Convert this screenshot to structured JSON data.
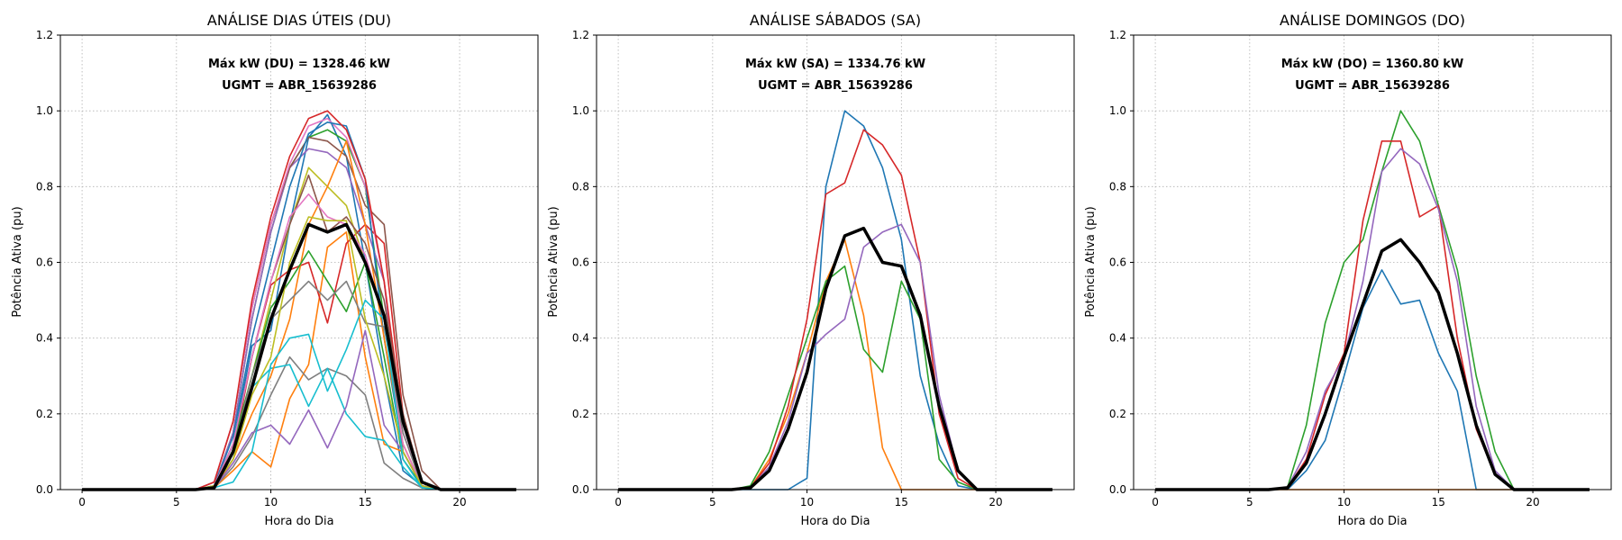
{
  "chart_data": [
    {
      "type": "line",
      "title": "ANÁLISE DIAS ÚTEIS (DU)",
      "xlabel": "Hora do Dia",
      "ylabel": "Potência Ativa (pu)",
      "annotations": [
        "Máx kW (DU) = 1328.46 kW",
        "UGMT = ABR_15639286"
      ],
      "xlim": [
        -1.15,
        24.15
      ],
      "ylim": [
        0,
        1.2
      ],
      "xticks": [
        "0",
        "5",
        "10",
        "15",
        "20"
      ],
      "yticks": [
        "0.0",
        "0.2",
        "0.4",
        "0.6",
        "0.8",
        "1.0",
        "1.2"
      ],
      "grid": true,
      "series": [
        {
          "color": "#1f77b4",
          "values": [
            0,
            0,
            0,
            0,
            0,
            0,
            0,
            0.01,
            0.12,
            0.38,
            0.42,
            0.7,
            0.93,
            0.99,
            0.88,
            0.6,
            0.3,
            0.05,
            0.01,
            0,
            0,
            0,
            0,
            0
          ]
        },
        {
          "color": "#ff7f0e",
          "values": [
            0,
            0,
            0,
            0,
            0,
            0,
            0,
            0.005,
            0.05,
            0.1,
            0.06,
            0.24,
            0.33,
            0.64,
            0.68,
            0.35,
            0.12,
            0.1,
            0.01,
            0,
            0,
            0,
            0,
            0
          ]
        },
        {
          "color": "#2ca02c",
          "values": [
            0,
            0,
            0,
            0,
            0,
            0,
            0,
            0.01,
            0.15,
            0.45,
            0.68,
            0.85,
            0.93,
            0.95,
            0.92,
            0.8,
            0.45,
            0.1,
            0.01,
            0,
            0,
            0,
            0,
            0
          ]
        },
        {
          "color": "#d62728",
          "values": [
            0,
            0,
            0,
            0,
            0,
            0,
            0,
            0.005,
            0.1,
            0.35,
            0.54,
            0.58,
            0.6,
            0.44,
            0.65,
            0.7,
            0.65,
            0.2,
            0.02,
            0,
            0,
            0,
            0,
            0
          ]
        },
        {
          "color": "#9467bd",
          "values": [
            0,
            0,
            0,
            0,
            0,
            0,
            0,
            0.01,
            0.15,
            0.45,
            0.68,
            0.85,
            0.9,
            0.89,
            0.85,
            0.7,
            0.55,
            0.1,
            0.01,
            0,
            0,
            0,
            0,
            0
          ]
        },
        {
          "color": "#8c564b",
          "values": [
            0,
            0,
            0,
            0,
            0,
            0,
            0,
            0.02,
            0.18,
            0.48,
            0.7,
            0.85,
            0.93,
            0.92,
            0.88,
            0.75,
            0.7,
            0.25,
            0.05,
            0,
            0,
            0,
            0,
            0
          ]
        },
        {
          "color": "#e377c2",
          "values": [
            0,
            0,
            0,
            0,
            0,
            0,
            0,
            0.02,
            0.18,
            0.48,
            0.7,
            0.86,
            0.96,
            0.98,
            0.93,
            0.8,
            0.55,
            0.15,
            0.02,
            0,
            0,
            0,
            0,
            0
          ]
        },
        {
          "color": "#7f7f7f",
          "values": [
            0,
            0,
            0,
            0,
            0,
            0,
            0,
            0.005,
            0.06,
            0.14,
            0.25,
            0.35,
            0.29,
            0.32,
            0.3,
            0.25,
            0.07,
            0.03,
            0.005,
            0,
            0,
            0,
            0,
            0
          ]
        },
        {
          "color": "#bcbd22",
          "values": [
            0,
            0,
            0,
            0,
            0,
            0,
            0,
            0.01,
            0.1,
            0.3,
            0.5,
            0.7,
            0.85,
            0.8,
            0.75,
            0.6,
            0.45,
            0.12,
            0.01,
            0,
            0,
            0,
            0,
            0
          ]
        },
        {
          "color": "#17becf",
          "values": [
            0,
            0,
            0,
            0,
            0,
            0,
            0,
            0.005,
            0.08,
            0.27,
            0.32,
            0.33,
            0.22,
            0.32,
            0.2,
            0.14,
            0.13,
            0.06,
            0.005,
            0,
            0,
            0,
            0,
            0
          ]
        },
        {
          "color": "#1f77b4",
          "values": [
            0,
            0,
            0,
            0,
            0,
            0,
            0,
            0.01,
            0.14,
            0.4,
            0.6,
            0.8,
            0.94,
            0.97,
            0.96,
            0.82,
            0.4,
            0.1,
            0.01,
            0,
            0,
            0,
            0,
            0
          ]
        },
        {
          "color": "#ff7f0e",
          "values": [
            0,
            0,
            0,
            0,
            0,
            0,
            0,
            0.005,
            0.08,
            0.2,
            0.3,
            0.45,
            0.7,
            0.8,
            0.92,
            0.7,
            0.4,
            0.12,
            0.01,
            0,
            0,
            0,
            0,
            0
          ]
        },
        {
          "color": "#2ca02c",
          "values": [
            0,
            0,
            0,
            0,
            0,
            0,
            0,
            0.01,
            0.12,
            0.3,
            0.48,
            0.55,
            0.63,
            0.55,
            0.47,
            0.6,
            0.35,
            0.08,
            0.01,
            0,
            0,
            0,
            0,
            0
          ]
        },
        {
          "color": "#d62728",
          "values": [
            0,
            0,
            0,
            0,
            0,
            0,
            0,
            0.02,
            0.18,
            0.5,
            0.72,
            0.88,
            0.98,
            1.0,
            0.95,
            0.82,
            0.55,
            0.18,
            0.02,
            0,
            0,
            0,
            0,
            0
          ]
        },
        {
          "color": "#9467bd",
          "values": [
            0,
            0,
            0,
            0,
            0,
            0,
            0,
            0.005,
            0.07,
            0.15,
            0.17,
            0.12,
            0.21,
            0.11,
            0.22,
            0.42,
            0.17,
            0.1,
            0.01,
            0,
            0,
            0,
            0,
            0
          ]
        },
        {
          "color": "#8c564b",
          "values": [
            0,
            0,
            0,
            0,
            0,
            0,
            0,
            0.01,
            0.12,
            0.35,
            0.55,
            0.7,
            0.83,
            0.68,
            0.72,
            0.65,
            0.5,
            0.2,
            0.02,
            0,
            0,
            0,
            0,
            0
          ]
        },
        {
          "color": "#e377c2",
          "values": [
            0,
            0,
            0,
            0,
            0,
            0,
            0,
            0.01,
            0.12,
            0.35,
            0.55,
            0.72,
            0.78,
            0.72,
            0.7,
            0.62,
            0.45,
            0.12,
            0.01,
            0,
            0,
            0,
            0,
            0
          ]
        },
        {
          "color": "#7f7f7f",
          "values": [
            0,
            0,
            0,
            0,
            0,
            0,
            0,
            0.01,
            0.1,
            0.3,
            0.45,
            0.5,
            0.55,
            0.5,
            0.55,
            0.44,
            0.43,
            0.15,
            0.01,
            0,
            0,
            0,
            0,
            0
          ]
        },
        {
          "color": "#bcbd22",
          "values": [
            0,
            0,
            0,
            0,
            0,
            0,
            0,
            0.01,
            0.08,
            0.25,
            0.35,
            0.6,
            0.72,
            0.71,
            0.71,
            0.45,
            0.3,
            0.1,
            0.01,
            0,
            0,
            0,
            0,
            0
          ]
        },
        {
          "color": "#17becf",
          "values": [
            0,
            0,
            0,
            0,
            0,
            0,
            0,
            0.005,
            0.02,
            0.1,
            0.33,
            0.4,
            0.41,
            0.26,
            0.37,
            0.5,
            0.45,
            0.08,
            0.005,
            0,
            0,
            0,
            0,
            0
          ]
        },
        {
          "color": "#000000",
          "bold": true,
          "values": [
            0,
            0,
            0,
            0,
            0,
            0,
            0,
            0.005,
            0.1,
            0.27,
            0.45,
            0.58,
            0.7,
            0.68,
            0.7,
            0.6,
            0.46,
            0.18,
            0.02,
            0,
            0,
            0,
            0,
            0
          ]
        }
      ]
    },
    {
      "type": "line",
      "title": "ANÁLISE SÁBADOS (SA)",
      "xlabel": "Hora do Dia",
      "ylabel": "Potência Ativa (pu)",
      "annotations": [
        "Máx kW (SA) = 1334.76 kW",
        "UGMT = ABR_15639286"
      ],
      "xlim": [
        -1.15,
        24.15
      ],
      "ylim": [
        0,
        1.2
      ],
      "xticks": [
        "0",
        "5",
        "10",
        "15",
        "20"
      ],
      "yticks": [
        "0.0",
        "0.2",
        "0.4",
        "0.6",
        "0.8",
        "1.0",
        "1.2"
      ],
      "grid": true,
      "series": [
        {
          "color": "#1f77b4",
          "values": [
            0,
            0,
            0,
            0,
            0,
            0,
            0,
            0,
            0,
            0,
            0.03,
            0.8,
            1.0,
            0.96,
            0.85,
            0.66,
            0.3,
            0.12,
            0.01,
            0,
            0,
            0,
            0,
            0
          ]
        },
        {
          "color": "#ff7f0e",
          "values": [
            0,
            0,
            0,
            0,
            0,
            0,
            0,
            0.005,
            0.08,
            0.2,
            0.36,
            0.55,
            0.66,
            0.46,
            0.11,
            0,
            0,
            0,
            0,
            0,
            0,
            0,
            0,
            0
          ]
        },
        {
          "color": "#2ca02c",
          "values": [
            0,
            0,
            0,
            0,
            0,
            0,
            0,
            0.01,
            0.1,
            0.25,
            0.4,
            0.55,
            0.59,
            0.37,
            0.31,
            0.55,
            0.45,
            0.08,
            0.02,
            0,
            0,
            0,
            0,
            0
          ]
        },
        {
          "color": "#d62728",
          "values": [
            0,
            0,
            0,
            0,
            0,
            0,
            0,
            0.005,
            0.07,
            0.22,
            0.45,
            0.78,
            0.81,
            0.95,
            0.91,
            0.83,
            0.6,
            0.2,
            0.03,
            0,
            0,
            0,
            0,
            0
          ]
        },
        {
          "color": "#9467bd",
          "values": [
            0,
            0,
            0,
            0,
            0,
            0,
            0,
            0.005,
            0.06,
            0.18,
            0.36,
            0.41,
            0.45,
            0.64,
            0.68,
            0.7,
            0.6,
            0.25,
            0.05,
            0,
            0,
            0,
            0,
            0
          ]
        },
        {
          "color": "#000000",
          "bold": true,
          "values": [
            0,
            0,
            0,
            0,
            0,
            0,
            0,
            0.005,
            0.05,
            0.16,
            0.31,
            0.53,
            0.67,
            0.69,
            0.6,
            0.59,
            0.46,
            0.22,
            0.05,
            0,
            0,
            0,
            0,
            0
          ]
        }
      ]
    },
    {
      "type": "line",
      "title": "ANÁLISE DOMINGOS (DO)",
      "xlabel": "Hora do Dia",
      "ylabel": "Potência Ativa (pu)",
      "annotations": [
        "Máx kW (DO) = 1360.80 kW",
        "UGMT = ABR_15639286"
      ],
      "xlim": [
        -1.15,
        24.15
      ],
      "ylim": [
        0,
        1.2
      ],
      "xticks": [
        "0",
        "5",
        "10",
        "15",
        "20"
      ],
      "yticks": [
        "0.0",
        "0.2",
        "0.4",
        "0.6",
        "0.8",
        "1.0",
        "1.2"
      ],
      "grid": true,
      "series": [
        {
          "color": "#1f77b4",
          "values": [
            0,
            0,
            0,
            0,
            0,
            0,
            0,
            0,
            0.05,
            0.13,
            0.3,
            0.48,
            0.58,
            0.49,
            0.5,
            0.36,
            0.26,
            0,
            0,
            0,
            0,
            0,
            0,
            0
          ]
        },
        {
          "color": "#ff7f0e",
          "values": [
            0,
            0,
            0,
            0,
            0,
            0,
            0,
            0,
            0,
            0,
            0,
            0,
            0,
            0,
            0,
            0,
            0,
            0,
            0,
            0,
            0,
            0,
            0,
            0
          ]
        },
        {
          "color": "#2ca02c",
          "values": [
            0,
            0,
            0,
            0,
            0,
            0,
            0,
            0.005,
            0.17,
            0.44,
            0.6,
            0.66,
            0.84,
            1.0,
            0.92,
            0.75,
            0.58,
            0.3,
            0.1,
            0,
            0,
            0,
            0,
            0
          ]
        },
        {
          "color": "#d62728",
          "values": [
            0,
            0,
            0,
            0,
            0,
            0,
            0,
            0.005,
            0.08,
            0.25,
            0.36,
            0.71,
            0.92,
            0.92,
            0.72,
            0.75,
            0.4,
            0.16,
            0.04,
            0,
            0,
            0,
            0,
            0
          ]
        },
        {
          "color": "#9467bd",
          "values": [
            0,
            0,
            0,
            0,
            0,
            0,
            0,
            0.005,
            0.1,
            0.26,
            0.35,
            0.55,
            0.84,
            0.9,
            0.86,
            0.74,
            0.55,
            0.22,
            0.05,
            0,
            0,
            0,
            0,
            0
          ]
        },
        {
          "color": "#000000",
          "bold": true,
          "values": [
            0,
            0,
            0,
            0,
            0,
            0,
            0,
            0.005,
            0.07,
            0.2,
            0.35,
            0.49,
            0.63,
            0.66,
            0.6,
            0.52,
            0.36,
            0.17,
            0.04,
            0,
            0,
            0,
            0,
            0
          ]
        }
      ]
    }
  ]
}
